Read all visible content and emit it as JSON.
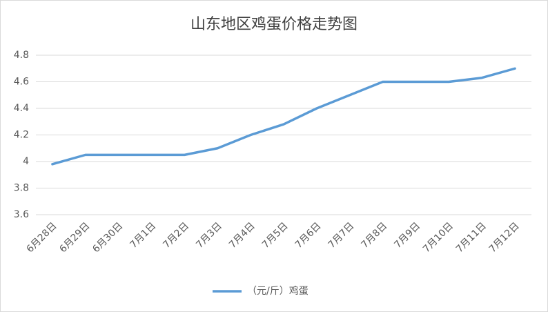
{
  "chart_data": {
    "type": "line",
    "title": "山东地区鸡蛋价格走势图",
    "categories": [
      "6月28日",
      "6月29日",
      "6月30日",
      "7月1日",
      "7月2日",
      "7月3日",
      "7月4日",
      "7月5日",
      "7月6日",
      "7月7日",
      "7月8日",
      "7月9日",
      "7月10日",
      "7月11日",
      "7月12日"
    ],
    "series": [
      {
        "name": "（元/斤）鸡蛋",
        "color": "#5b9bd5",
        "values": [
          3.98,
          4.05,
          4.05,
          4.05,
          4.05,
          4.1,
          4.2,
          4.28,
          4.4,
          4.5,
          4.6,
          4.6,
          4.6,
          4.63,
          4.7
        ]
      }
    ],
    "ylim": [
      3.6,
      4.8
    ],
    "yticks": [
      3.6,
      3.8,
      4,
      4.2,
      4.4,
      4.6,
      4.8
    ],
    "grid": true,
    "legend": "bottom"
  }
}
